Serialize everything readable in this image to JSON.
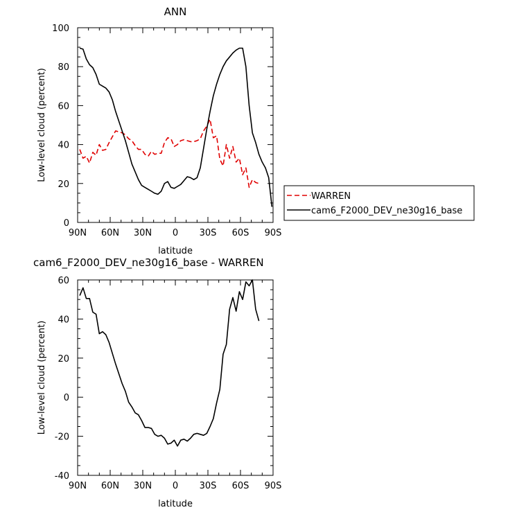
{
  "chart_data": [
    {
      "type": "line",
      "title": "ANN",
      "xlabel": "latitude",
      "ylabel": "Low-level cloud (percent)",
      "x_direction": "90N to 90S (north on left)",
      "xlim": [
        90,
        -90
      ],
      "ylim": [
        0,
        100
      ],
      "xticks": [
        {
          "value": 90,
          "label": "90N"
        },
        {
          "value": 60,
          "label": "60N"
        },
        {
          "value": 30,
          "label": "30N"
        },
        {
          "value": 0,
          "label": "0"
        },
        {
          "value": -30,
          "label": "30S"
        },
        {
          "value": -60,
          "label": "60S"
        },
        {
          "value": -90,
          "label": "90S"
        }
      ],
      "yticks": [
        0,
        20,
        40,
        60,
        80,
        100
      ],
      "legend_position": "right, outside plot",
      "series": [
        {
          "name": "WARREN",
          "color": "#e00000",
          "dash": "dashed",
          "x": [
            88,
            85,
            82,
            79,
            76,
            73,
            70,
            67,
            64,
            61,
            58,
            55,
            52,
            49,
            46,
            43,
            40,
            37,
            34,
            31,
            28,
            25,
            22,
            19,
            16,
            13,
            10,
            7,
            4,
            1,
            -2,
            -5,
            -8,
            -11,
            -14,
            -17,
            -20,
            -23,
            -26,
            -29,
            -32,
            -35,
            -38,
            -41,
            -44,
            -47,
            -50,
            -53,
            -56,
            -59,
            -62,
            -65,
            -68,
            -71,
            -74,
            -77
          ],
          "y": [
            37.5,
            33,
            34,
            30.5,
            36,
            34.5,
            40,
            37,
            37.5,
            41,
            44,
            47,
            46.5,
            46,
            45,
            43,
            42,
            39.5,
            37.5,
            37.5,
            35,
            34,
            36.5,
            35,
            35.5,
            35.5,
            41,
            43.5,
            43,
            39,
            40,
            42,
            42.5,
            42,
            41.5,
            41.5,
            42,
            43,
            47,
            49.5,
            53,
            43.5,
            44.5,
            32.5,
            29,
            40,
            33,
            39,
            31,
            33,
            24.5,
            28,
            18,
            22,
            20.5,
            20
          ]
        },
        {
          "name": "cam6_F2000_DEV_ne30g16_base",
          "color": "#000000",
          "dash": "solid",
          "x": [
            88,
            85,
            82,
            79,
            76,
            73,
            70,
            67,
            64,
            61,
            58,
            55,
            52,
            49,
            46,
            43,
            40,
            37,
            34,
            31,
            28,
            25,
            22,
            19,
            16,
            13,
            10,
            7,
            4,
            1,
            -2,
            -5,
            -8,
            -11,
            -14,
            -17,
            -20,
            -23,
            -26,
            -29,
            -32,
            -35,
            -38,
            -41,
            -44,
            -47,
            -50,
            -53,
            -56,
            -59,
            -62,
            -65,
            -68,
            -71,
            -74,
            -77,
            -80,
            -83,
            -86,
            -89
          ],
          "y": [
            89.5,
            89,
            84,
            81,
            79.5,
            76,
            71,
            70,
            69,
            67,
            63,
            57,
            52,
            47,
            42,
            36,
            30,
            26,
            22,
            19,
            18,
            17,
            16,
            15,
            14.5,
            16,
            20,
            21,
            18,
            17.5,
            18.5,
            19.5,
            21.5,
            23.5,
            23,
            22,
            23,
            28,
            38,
            48,
            57,
            65,
            71,
            76,
            80,
            83,
            85,
            87,
            88.5,
            89.5,
            89.5,
            80,
            60,
            46,
            41,
            35,
            31,
            28,
            23,
            8
          ]
        }
      ]
    },
    {
      "type": "line",
      "title": "cam6_F2000_DEV_ne30g16_base - WARREN",
      "xlabel": "latitude",
      "ylabel": "Low-level cloud (percent)",
      "xlim": [
        90,
        -90
      ],
      "ylim": [
        -40,
        60
      ],
      "xticks": [
        {
          "value": 90,
          "label": "90N"
        },
        {
          "value": 60,
          "label": "60N"
        },
        {
          "value": 30,
          "label": "30N"
        },
        {
          "value": 0,
          "label": "0"
        },
        {
          "value": -30,
          "label": "30S"
        },
        {
          "value": -60,
          "label": "60S"
        },
        {
          "value": -90,
          "label": "90S"
        }
      ],
      "yticks": [
        -40,
        -20,
        0,
        20,
        40,
        60
      ],
      "series": [
        {
          "color": "#000000",
          "dash": "solid",
          "x": [
            88,
            85,
            82,
            79,
            76,
            73,
            70,
            67,
            64,
            61,
            58,
            55,
            52,
            49,
            46,
            43,
            40,
            37,
            34,
            31,
            28,
            25,
            22,
            19,
            16,
            13,
            10,
            7,
            4,
            1,
            -2,
            -5,
            -8,
            -11,
            -14,
            -17,
            -20,
            -23,
            -26,
            -29,
            -32,
            -35,
            -38,
            -41,
            -44,
            -47,
            -50,
            -53,
            -56,
            -59,
            -62,
            -65,
            -68,
            -71,
            -74,
            -77
          ],
          "y": [
            52,
            56,
            50.5,
            50.5,
            43.5,
            42.5,
            32.5,
            33.5,
            32,
            28,
            22.5,
            17,
            12,
            7,
            3,
            -2.5,
            -5,
            -8,
            -9,
            -12,
            -15.5,
            -15.5,
            -16,
            -19,
            -20,
            -19.5,
            -21,
            -24,
            -23.5,
            -22,
            -25,
            -22,
            -21.5,
            -22.5,
            -21,
            -19,
            -18.5,
            -19,
            -19.5,
            -18.5,
            -15,
            -11,
            -3,
            4,
            22,
            27,
            45,
            51,
            44,
            54,
            50,
            59,
            57,
            60,
            45,
            39
          ]
        }
      ]
    }
  ]
}
